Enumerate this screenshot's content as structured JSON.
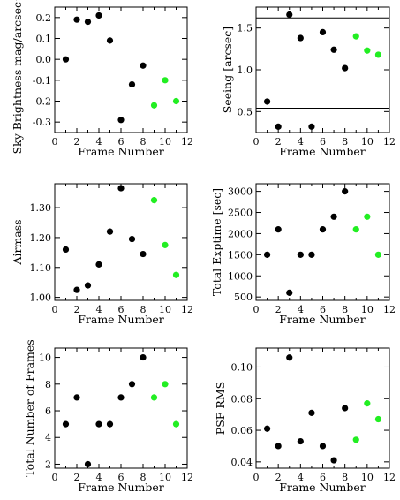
{
  "colors": {
    "black_points": "#000000",
    "green_points": "#22ee22",
    "axes": "#000000"
  },
  "chart_data": [
    {
      "id": "sky-brightness",
      "type": "scatter",
      "xlabel": "Frame Number",
      "ylabel": "Sky Brightness mag/arcsec^2",
      "xlim": [
        0,
        12
      ],
      "ylim": [
        -0.35,
        0.25
      ],
      "xticks": [
        "0",
        "2",
        "4",
        "6",
        "8",
        "10",
        "12"
      ],
      "yticks": [
        "0.2",
        "0.1",
        "0.0",
        "-0.1",
        "-0.2",
        "-0.3"
      ],
      "series": [
        {
          "color": "black",
          "x": [
            1,
            2,
            3,
            4,
            5,
            6,
            7,
            8
          ],
          "y": [
            0.0,
            0.19,
            0.18,
            0.21,
            0.09,
            -0.29,
            -0.12,
            -0.03
          ]
        },
        {
          "color": "green",
          "x": [
            9,
            10,
            11
          ],
          "y": [
            -0.22,
            -0.1,
            -0.2
          ]
        }
      ],
      "hlines": []
    },
    {
      "id": "seeing",
      "type": "scatter",
      "xlabel": "Frame Number",
      "ylabel": "Seeing [arcsec]",
      "xlim": [
        0,
        12
      ],
      "ylim": [
        0.25,
        1.75
      ],
      "xticks": [
        "0",
        "2",
        "4",
        "6",
        "8",
        "10",
        "12"
      ],
      "yticks": [
        "1.5",
        "1.0",
        "0.5"
      ],
      "series": [
        {
          "color": "black",
          "x": [
            1,
            2,
            3,
            4,
            5,
            6,
            7,
            8
          ],
          "y": [
            0.62,
            0.32,
            1.66,
            1.38,
            0.32,
            1.45,
            1.24,
            1.02
          ]
        },
        {
          "color": "green",
          "x": [
            9,
            10,
            11
          ],
          "y": [
            1.4,
            1.23,
            1.18
          ]
        }
      ],
      "hlines": [
        1.62,
        0.54
      ]
    },
    {
      "id": "airmass",
      "type": "scatter",
      "xlabel": "Frame Number",
      "ylabel": "Airmass",
      "xlim": [
        0,
        12
      ],
      "ylim": [
        0.99,
        1.38
      ],
      "xticks": [
        "0",
        "2",
        "4",
        "6",
        "8",
        "10",
        "12"
      ],
      "yticks": [
        "1.30",
        "1.20",
        "1.10",
        "1.00"
      ],
      "series": [
        {
          "color": "black",
          "x": [
            1,
            2,
            3,
            4,
            5,
            6,
            7,
            8
          ],
          "y": [
            1.16,
            1.025,
            1.04,
            1.11,
            1.22,
            1.365,
            1.195,
            1.145
          ]
        },
        {
          "color": "green",
          "x": [
            9,
            10,
            11
          ],
          "y": [
            1.325,
            1.175,
            1.075
          ]
        }
      ],
      "hlines": []
    },
    {
      "id": "total-exptime",
      "type": "scatter",
      "xlabel": "Frame Number",
      "ylabel": "Total Exptime [sec]",
      "xlim": [
        0,
        12
      ],
      "ylim": [
        420,
        3180
      ],
      "xticks": [
        "0",
        "2",
        "4",
        "6",
        "8",
        "10",
        "12"
      ],
      "yticks": [
        "3000",
        "2500",
        "2000",
        "1500",
        "1000",
        "500"
      ],
      "series": [
        {
          "color": "black",
          "x": [
            1,
            2,
            3,
            4,
            5,
            6,
            7,
            8
          ],
          "y": [
            1500,
            2100,
            600,
            1500,
            1500,
            2100,
            2400,
            3000
          ]
        },
        {
          "color": "green",
          "x": [
            9,
            10,
            11
          ],
          "y": [
            2100,
            2400,
            1500
          ]
        }
      ],
      "hlines": []
    },
    {
      "id": "total-frames",
      "type": "scatter",
      "xlabel": "Frame Number",
      "ylabel": "Total Number of Frames",
      "xlim": [
        0,
        12
      ],
      "ylim": [
        1.7,
        10.7
      ],
      "xticks": [
        "0",
        "2",
        "4",
        "6",
        "8",
        "10",
        "12"
      ],
      "yticks": [
        "2",
        "4",
        "6",
        "8",
        "10"
      ],
      "series": [
        {
          "color": "black",
          "x": [
            1,
            2,
            3,
            4,
            5,
            6,
            7,
            8
          ],
          "y": [
            5,
            7,
            2,
            5,
            5,
            7,
            8,
            10
          ]
        },
        {
          "color": "green",
          "x": [
            9,
            10,
            11
          ],
          "y": [
            7,
            8,
            5
          ]
        }
      ],
      "hlines": []
    },
    {
      "id": "psf-rms",
      "type": "scatter",
      "xlabel": "Frame Number",
      "ylabel": "PSF RMS",
      "xlim": [
        0,
        12
      ],
      "ylim": [
        0.036,
        0.112
      ],
      "xticks": [
        "0",
        "2",
        "4",
        "6",
        "8",
        "10",
        "12"
      ],
      "yticks": [
        "0.10",
        "0.08",
        "0.06",
        "0.04"
      ],
      "series": [
        {
          "color": "black",
          "x": [
            1,
            2,
            3,
            4,
            5,
            6,
            7,
            8
          ],
          "y": [
            0.061,
            0.05,
            0.106,
            0.053,
            0.071,
            0.05,
            0.041,
            0.074
          ]
        },
        {
          "color": "green",
          "x": [
            9,
            10,
            11
          ],
          "y": [
            0.054,
            0.077,
            0.067
          ]
        }
      ],
      "hlines": []
    }
  ]
}
